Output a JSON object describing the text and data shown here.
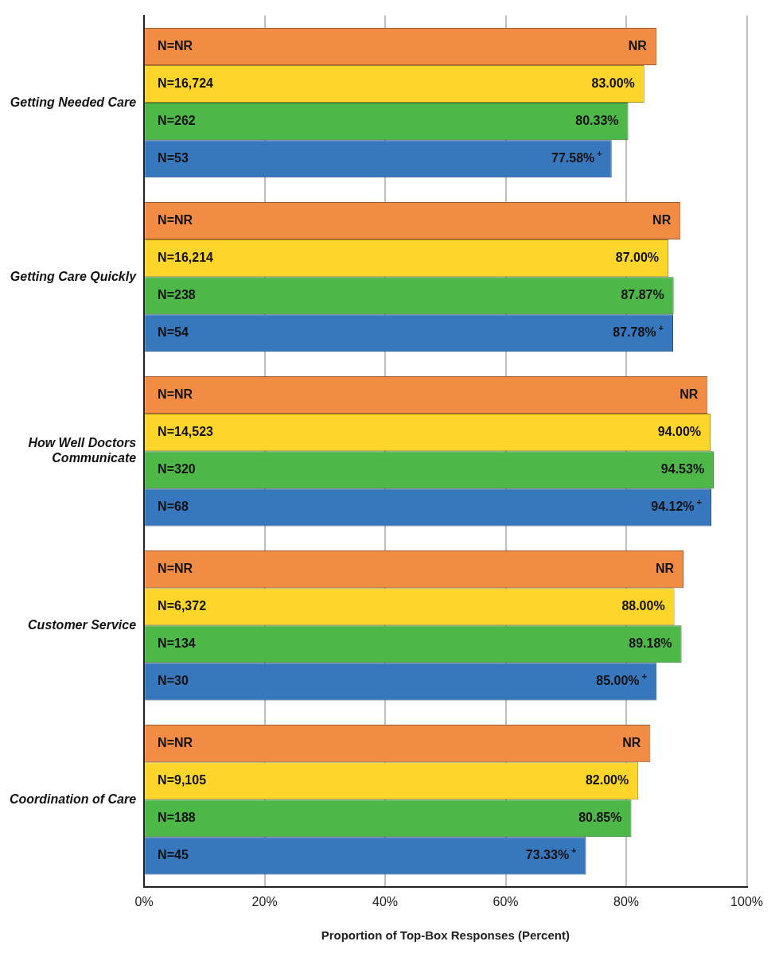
{
  "chart_data": {
    "type": "bar",
    "orientation": "horizontal",
    "xlabel": "Proportion of Top-Box Responses (Percent)",
    "categories": [
      "Getting Needed Care",
      "Getting Care Quickly",
      "How Well Doctors Communicate",
      "Customer Service",
      "Coordination of Care"
    ],
    "series": [
      {
        "color": "#f28c45",
        "values": [
          85,
          89,
          93.5,
          89.5,
          84
        ],
        "value_labels": [
          "NR",
          "NR",
          "NR",
          "NR",
          "NR"
        ]
      },
      {
        "color": "#fdd52b",
        "values": [
          83,
          87,
          94,
          88,
          82
        ],
        "value_labels": [
          "83.00%",
          "87.00%",
          "94.00%",
          "88.00%",
          "82.00%"
        ]
      },
      {
        "color": "#4db748",
        "values": [
          80.33,
          87.87,
          94.53,
          89.18,
          80.85
        ],
        "value_labels": [
          "80.33%",
          "87.87%",
          "94.53%",
          "89.18%",
          "80.85%"
        ]
      },
      {
        "color": "#3677bd",
        "values": [
          77.58,
          87.78,
          94.12,
          85,
          73.33
        ],
        "value_labels": [
          "77.58%$^{+}$",
          "87.78%$^{+}$",
          "94.12%$^{+}$",
          "85.00%$^{+}$",
          "73.33%$^{+}$"
        ]
      }
    ],
    "annotations": [
      "N=NR",
      "N=16,724",
      "N=262",
      "N=53",
      "N=NR",
      "N=16,214",
      "N=238",
      "N=54",
      "N=NR",
      "N=14,523",
      "N=320",
      "N=68",
      "N=NR",
      "N=6,372",
      "N=134",
      "N=30",
      "N=NR",
      "N=9,105",
      "N=188",
      "N=45"
    ],
    "xlim": [
      0,
      100
    ],
    "xticks": [
      {
        "value": 0,
        "label": "0%"
      },
      {
        "value": 20,
        "label": "20%"
      },
      {
        "value": 40,
        "label": "40%"
      },
      {
        "value": 60,
        "label": "60%"
      },
      {
        "value": 80,
        "label": "80%"
      },
      {
        "value": 100,
        "label": "100%"
      }
    ],
    "grid": "x",
    "legend": false
  }
}
